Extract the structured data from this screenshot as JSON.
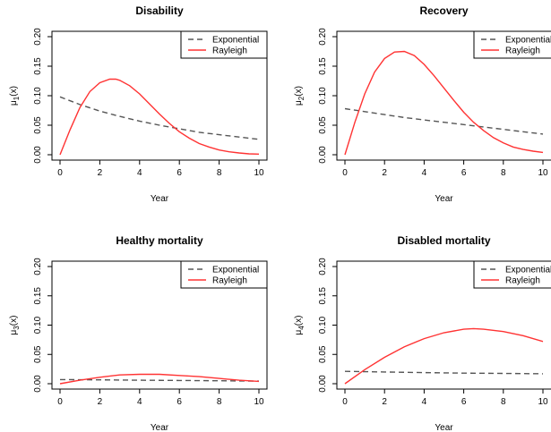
{
  "figure": {
    "panels": [
      {
        "title": "Disability",
        "xlabel": "Year",
        "ylabel_base": "μ",
        "ylabel_sub": "1",
        "ylabel_rest": "(x)"
      },
      {
        "title": "Recovery",
        "xlabel": "Year",
        "ylabel_base": "μ",
        "ylabel_sub": "2",
        "ylabel_rest": "(x)"
      },
      {
        "title": "Healthy mortality",
        "xlabel": "Year",
        "ylabel_base": "μ",
        "ylabel_sub": "3",
        "ylabel_rest": "(x)"
      },
      {
        "title": "Disabled mortality",
        "xlabel": "Year",
        "ylabel_base": "μ",
        "ylabel_sub": "4",
        "ylabel_rest": "(x)"
      }
    ],
    "legend_labels": [
      "Exponential",
      "Rayleigh"
    ]
  },
  "chart_data": [
    {
      "type": "line",
      "title": "Disability",
      "xlabel": "Year",
      "ylabel": "μ1(x)",
      "xlim": [
        0,
        10
      ],
      "ylim": [
        0,
        0.2
      ],
      "xticks": [
        0,
        2,
        4,
        6,
        8,
        10
      ],
      "yticks": [
        "0.00",
        "0.05",
        "0.10",
        "0.15",
        "0.20"
      ],
      "grid": false,
      "legend_position": "top-right",
      "series": [
        {
          "name": "Exponential",
          "style": "dashed",
          "color": "#555555",
          "x": [
            0,
            1,
            2,
            3,
            4,
            5,
            6,
            7,
            8,
            9,
            10
          ],
          "y": [
            0.098,
            0.085,
            0.074,
            0.065,
            0.057,
            0.05,
            0.044,
            0.038,
            0.034,
            0.03,
            0.026
          ]
        },
        {
          "name": "Rayleigh",
          "style": "solid",
          "color": "#ff3333",
          "x": [
            0,
            0.5,
            1,
            1.5,
            2,
            2.5,
            2.8,
            3,
            3.5,
            4,
            4.5,
            5,
            5.5,
            6,
            6.5,
            7,
            7.5,
            8,
            8.5,
            9,
            9.5,
            10
          ],
          "y": [
            0,
            0.042,
            0.08,
            0.107,
            0.122,
            0.128,
            0.128,
            0.126,
            0.117,
            0.103,
            0.086,
            0.069,
            0.053,
            0.039,
            0.028,
            0.019,
            0.013,
            0.008,
            0.005,
            0.003,
            0.0015,
            0.001
          ]
        }
      ]
    },
    {
      "type": "line",
      "title": "Recovery",
      "xlabel": "Year",
      "ylabel": "μ2(x)",
      "xlim": [
        0,
        10
      ],
      "ylim": [
        0,
        0.2
      ],
      "xticks": [
        0,
        2,
        4,
        6,
        8,
        10
      ],
      "yticks": [
        "0.00",
        "0.05",
        "0.10",
        "0.15",
        "0.20"
      ],
      "grid": false,
      "legend_position": "top-right",
      "series": [
        {
          "name": "Exponential",
          "style": "dashed",
          "color": "#555555",
          "x": [
            0,
            1,
            2,
            3,
            4,
            5,
            6,
            7,
            8,
            9,
            10
          ],
          "y": [
            0.078,
            0.073,
            0.068,
            0.063,
            0.059,
            0.055,
            0.051,
            0.047,
            0.043,
            0.039,
            0.035
          ]
        },
        {
          "name": "Rayleigh",
          "style": "solid",
          "color": "#ff3333",
          "x": [
            0,
            0.5,
            1,
            1.5,
            2,
            2.5,
            3,
            3.5,
            4,
            4.5,
            5,
            5.5,
            6,
            6.5,
            7,
            7.5,
            8,
            8.5,
            9,
            9.5,
            10
          ],
          "y": [
            0,
            0.055,
            0.103,
            0.14,
            0.163,
            0.174,
            0.175,
            0.168,
            0.153,
            0.134,
            0.113,
            0.092,
            0.072,
            0.055,
            0.041,
            0.029,
            0.02,
            0.013,
            0.009,
            0.006,
            0.004
          ]
        }
      ]
    },
    {
      "type": "line",
      "title": "Healthy mortality",
      "xlabel": "Year",
      "ylabel": "μ3(x)",
      "xlim": [
        0,
        10
      ],
      "ylim": [
        0,
        0.2
      ],
      "xticks": [
        0,
        2,
        4,
        6,
        8,
        10
      ],
      "yticks": [
        "0.00",
        "0.05",
        "0.10",
        "0.15",
        "0.20"
      ],
      "grid": false,
      "legend_position": "top-right",
      "series": [
        {
          "name": "Exponential",
          "style": "dashed",
          "color": "#555555",
          "x": [
            0,
            2,
            4,
            6,
            8,
            10
          ],
          "y": [
            0.007,
            0.0065,
            0.006,
            0.0055,
            0.005,
            0.0045
          ]
        },
        {
          "name": "Rayleigh",
          "style": "solid",
          "color": "#ff3333",
          "x": [
            0,
            1,
            2,
            3,
            4,
            5,
            6,
            7,
            8,
            9,
            10
          ],
          "y": [
            0,
            0.006,
            0.011,
            0.015,
            0.016,
            0.016,
            0.014,
            0.012,
            0.009,
            0.006,
            0.004
          ]
        }
      ]
    },
    {
      "type": "line",
      "title": "Disabled mortality",
      "xlabel": "Year",
      "ylabel": "μ4(x)",
      "xlim": [
        0,
        10
      ],
      "ylim": [
        0,
        0.2
      ],
      "xticks": [
        0,
        2,
        4,
        6,
        8,
        10
      ],
      "yticks": [
        "0.00",
        "0.05",
        "0.10",
        "0.15",
        "0.20"
      ],
      "grid": false,
      "legend_position": "top-right",
      "series": [
        {
          "name": "Exponential",
          "style": "dashed",
          "color": "#555555",
          "x": [
            0,
            2,
            4,
            6,
            8,
            10
          ],
          "y": [
            0.021,
            0.02,
            0.019,
            0.018,
            0.0175,
            0.017
          ]
        },
        {
          "name": "Rayleigh",
          "style": "solid",
          "color": "#ff3333",
          "x": [
            0,
            1,
            2,
            3,
            4,
            5,
            6,
            6.5,
            7,
            8,
            9,
            10
          ],
          "y": [
            0,
            0.024,
            0.045,
            0.063,
            0.077,
            0.087,
            0.093,
            0.094,
            0.093,
            0.089,
            0.082,
            0.072
          ]
        }
      ]
    }
  ]
}
